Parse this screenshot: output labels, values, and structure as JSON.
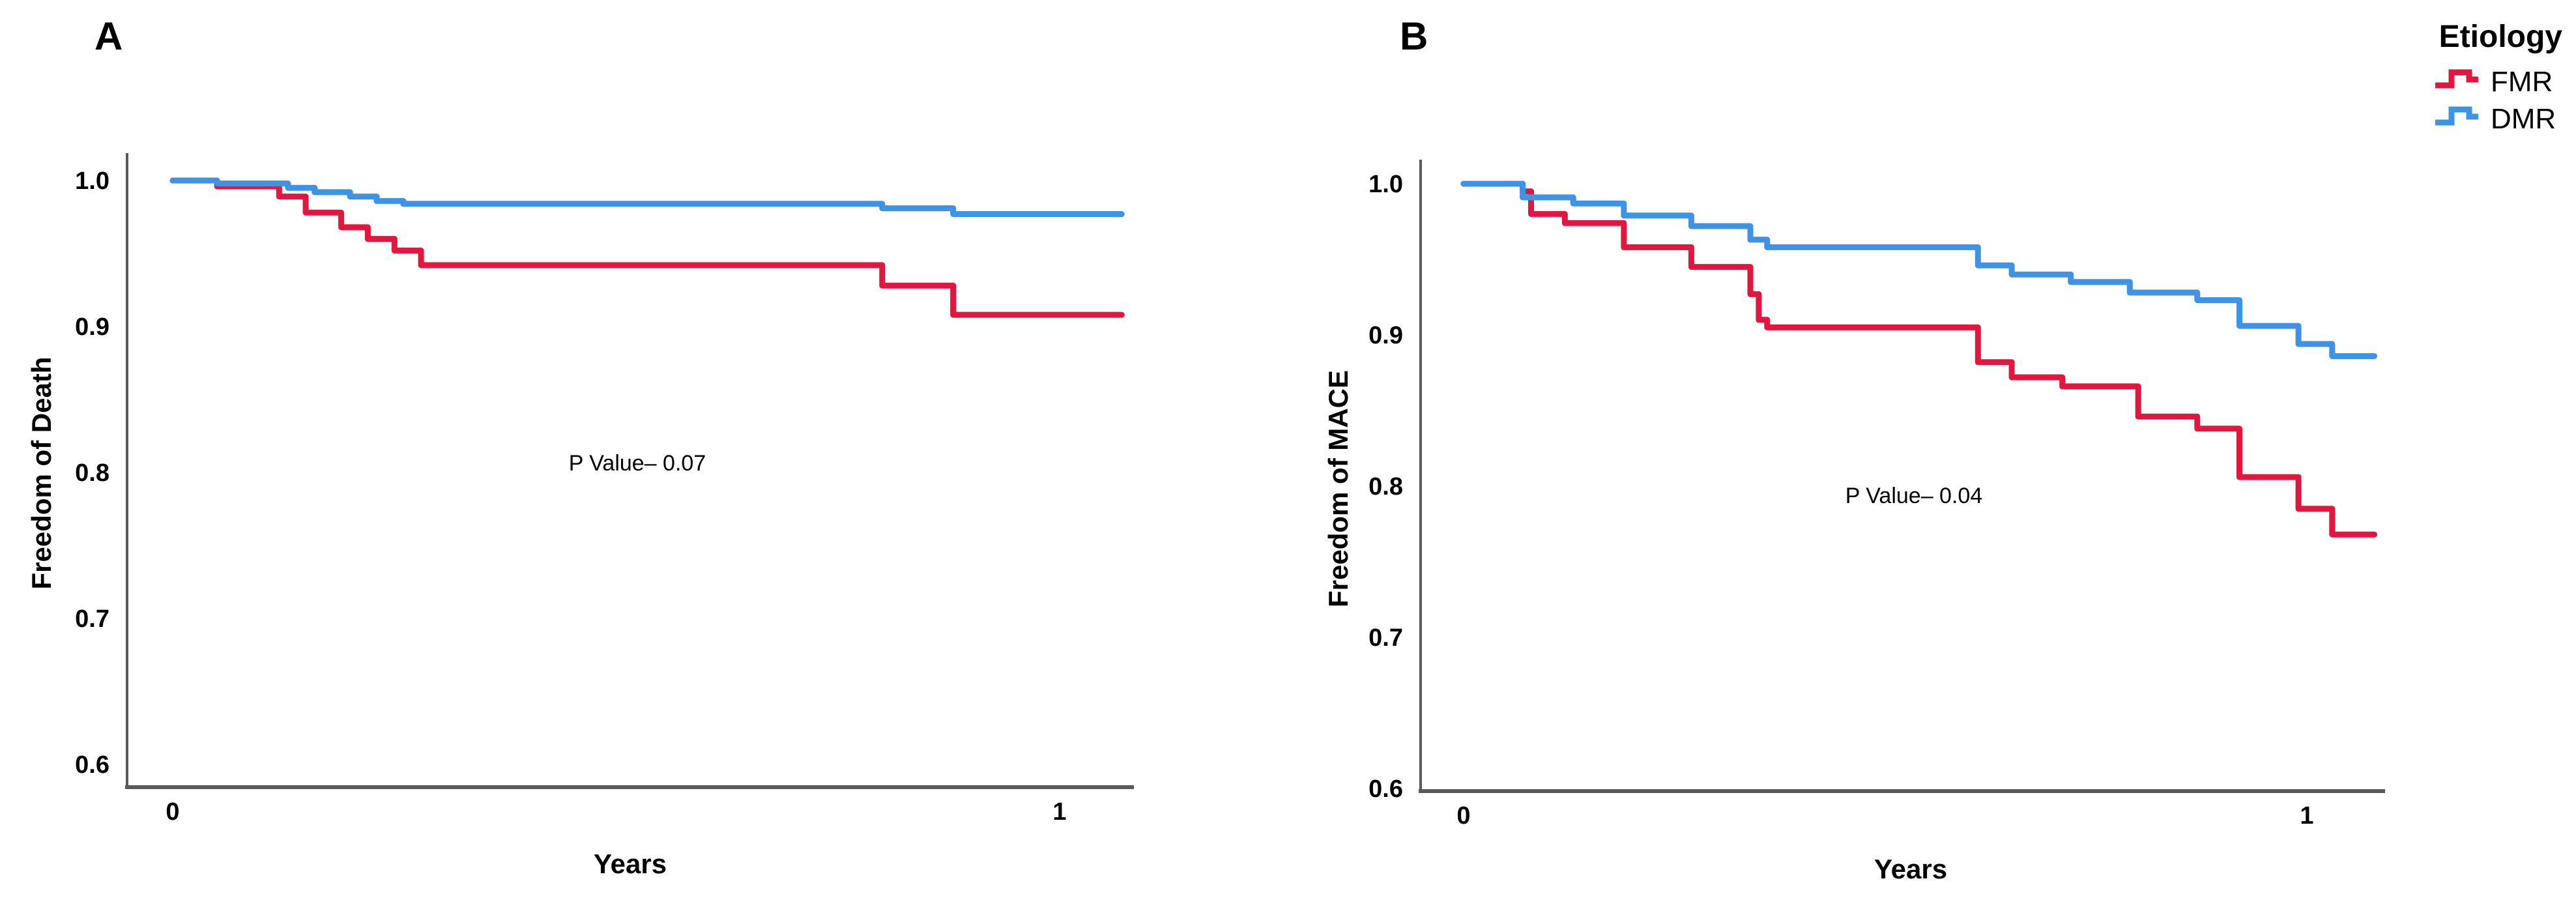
{
  "figure": {
    "panels": [
      {
        "panel_label": "A",
        "ylabel": "Freedom of Death",
        "xlabel": "Years",
        "p_value_text": "P Value– 0.07",
        "yticks": [
          "1.0",
          "0.9",
          "0.8",
          "0.7",
          "0.6"
        ],
        "xticks": [
          "0",
          "1"
        ]
      },
      {
        "panel_label": "B",
        "ylabel": "Freedom of MACE",
        "xlabel": "Years",
        "p_value_text": "P Value– 0.04",
        "yticks": [
          "1.0",
          "0.9",
          "0.8",
          "0.7",
          "0.6"
        ],
        "xticks": [
          "0",
          "1"
        ]
      }
    ],
    "legend": {
      "title": "Etiology",
      "items": [
        {
          "label": "FMR",
          "color": "#E2173F"
        },
        {
          "label": "DMR",
          "color": "#3E93E4"
        }
      ]
    },
    "colors": {
      "fmr_red": "#E2173F",
      "dmr_blue": "#3E93E4",
      "axis_gray": "#5a5a5a",
      "text_black": "#000000"
    }
  },
  "chart_data": [
    {
      "type": "line",
      "subtype": "kaplan_meier_step",
      "panel": "A",
      "title": "",
      "xlabel": "Years",
      "ylabel": "Freedom of Death",
      "p_value": "P Value– 0.07",
      "xlim": [
        -0.05,
        1.08
      ],
      "ylim": [
        0.585,
        1.017
      ],
      "xtick_values": [
        0,
        1
      ],
      "ytick_values": [
        1.0,
        0.9,
        0.8,
        0.7,
        0.6
      ],
      "grid": false,
      "legend_position": "top-right-outside",
      "series": [
        {
          "name": "FMR",
          "color": "#E2173F",
          "end_t": 1.07,
          "steps": [
            [
              0,
              1.0
            ],
            [
              0.05,
              0.996
            ],
            [
              0.12,
              0.989
            ],
            [
              0.15,
              0.978
            ],
            [
              0.19,
              0.968
            ],
            [
              0.22,
              0.96
            ],
            [
              0.25,
              0.952
            ],
            [
              0.28,
              0.942
            ],
            [
              0.8,
              0.928
            ],
            [
              0.88,
              0.908
            ]
          ]
        },
        {
          "name": "DMR",
          "color": "#3E93E4",
          "end_t": 1.07,
          "steps": [
            [
              0,
              1.0
            ],
            [
              0.05,
              0.998
            ],
            [
              0.13,
              0.995
            ],
            [
              0.16,
              0.992
            ],
            [
              0.2,
              0.989
            ],
            [
              0.23,
              0.986
            ],
            [
              0.26,
              0.984
            ],
            [
              0.8,
              0.981
            ],
            [
              0.88,
              0.977
            ]
          ]
        }
      ]
    },
    {
      "type": "line",
      "subtype": "kaplan_meier_step",
      "panel": "B",
      "title": "",
      "xlabel": "Years",
      "ylabel": "Freedom of MACE",
      "p_value": "P Value– 0.04",
      "xlim": [
        -0.05,
        1.09
      ],
      "ylim": [
        0.598,
        1.016
      ],
      "xtick_values": [
        0,
        1
      ],
      "ytick_values": [
        1.0,
        0.9,
        0.8,
        0.7,
        0.6
      ],
      "grid": false,
      "legend_position": "top-right-outside",
      "series": [
        {
          "name": "FMR",
          "color": "#E2173F",
          "end_t": 1.08,
          "steps": [
            [
              0,
              1.0
            ],
            [
              0.07,
              0.995
            ],
            [
              0.08,
              0.98
            ],
            [
              0.12,
              0.974
            ],
            [
              0.19,
              0.958
            ],
            [
              0.27,
              0.945
            ],
            [
              0.34,
              0.927
            ],
            [
              0.35,
              0.91
            ],
            [
              0.36,
              0.905
            ],
            [
              0.61,
              0.882
            ],
            [
              0.65,
              0.872
            ],
            [
              0.71,
              0.866
            ],
            [
              0.8,
              0.846
            ],
            [
              0.87,
              0.838
            ],
            [
              0.92,
              0.806
            ],
            [
              0.99,
              0.785
            ],
            [
              1.03,
              0.768
            ]
          ]
        },
        {
          "name": "DMR",
          "color": "#3E93E4",
          "end_t": 1.08,
          "steps": [
            [
              0,
              1.0
            ],
            [
              0.07,
              0.991
            ],
            [
              0.13,
              0.987
            ],
            [
              0.19,
              0.979
            ],
            [
              0.27,
              0.972
            ],
            [
              0.34,
              0.963
            ],
            [
              0.36,
              0.958
            ],
            [
              0.61,
              0.946
            ],
            [
              0.65,
              0.94
            ],
            [
              0.72,
              0.935
            ],
            [
              0.79,
              0.928
            ],
            [
              0.87,
              0.923
            ],
            [
              0.92,
              0.906
            ],
            [
              0.99,
              0.894
            ],
            [
              1.03,
              0.886
            ]
          ]
        }
      ]
    }
  ]
}
